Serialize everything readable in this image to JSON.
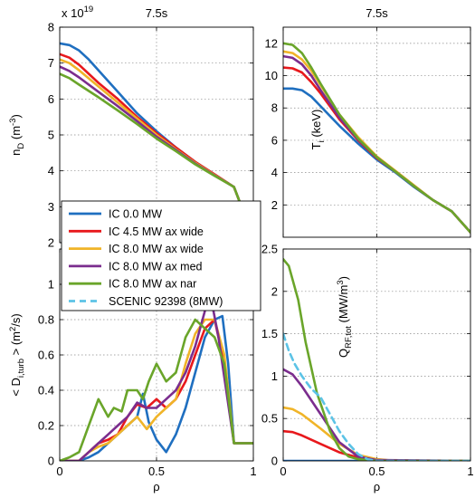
{
  "colors": {
    "IC 0.0 MW": "#1f6fc0",
    "IC 4.5 MW ax wide": "#e8181c",
    "IC 8.0 MW ax wide": "#f0b428",
    "IC 8.0 MW ax med": "#7b2d8e",
    "IC 8.0 MW ax nar": "#6aa52a",
    "SCENIC 92398 (8MW)": "#5cc3e6"
  },
  "legend": {
    "entries": [
      "IC 0.0 MW",
      "IC 4.5 MW ax wide",
      "IC 8.0 MW ax wide",
      "IC 8.0 MW ax med",
      "IC 8.0 MW ax nar",
      "SCENIC 92398 (8MW)"
    ],
    "dashed": [
      "SCENIC 92398 (8MW)"
    ]
  },
  "chart_data": [
    {
      "type": "line",
      "panel": "density",
      "title": "7.5s",
      "multiplier": "x 10",
      "multiplier_exp": "19",
      "xlabel": "",
      "ylabel_main": "n",
      "ylabel_sub": "D",
      "ylabel_unit": "(m",
      "ylabel_unit_exp": "-3",
      "ylabel_unit_close": ")",
      "xlim": [
        0,
        1
      ],
      "ylim": [
        2,
        8
      ],
      "xticks": [],
      "yticks": [
        "2",
        "3",
        "4",
        "5",
        "6",
        "7",
        "8"
      ],
      "grid": true,
      "series": [
        {
          "name": "IC 0.0 MW",
          "x": [
            0,
            0.05,
            0.1,
            0.15,
            0.2,
            0.3,
            0.4,
            0.5,
            0.6,
            0.7,
            0.8,
            0.9,
            0.95,
            1.0
          ],
          "y": [
            7.55,
            7.5,
            7.35,
            7.1,
            6.8,
            6.2,
            5.6,
            5.1,
            4.65,
            4.25,
            3.9,
            3.55,
            2.85,
            2.25
          ]
        },
        {
          "name": "IC 4.5 MW ax wide",
          "x": [
            0,
            0.05,
            0.1,
            0.2,
            0.3,
            0.4,
            0.5,
            0.6,
            0.7,
            0.8,
            0.9,
            0.95,
            1.0
          ],
          "y": [
            7.25,
            7.15,
            6.95,
            6.45,
            6.0,
            5.5,
            5.05,
            4.65,
            4.25,
            3.9,
            3.55,
            2.85,
            2.25
          ]
        },
        {
          "name": "IC 8.0 MW ax wide",
          "x": [
            0,
            0.05,
            0.1,
            0.2,
            0.3,
            0.4,
            0.5,
            0.6,
            0.7,
            0.8,
            0.9,
            0.95,
            1.0
          ],
          "y": [
            7.1,
            7.0,
            6.8,
            6.35,
            5.9,
            5.45,
            5.0,
            4.6,
            4.22,
            3.88,
            3.55,
            2.85,
            2.25
          ]
        },
        {
          "name": "IC 8.0 MW ax med",
          "x": [
            0,
            0.05,
            0.1,
            0.2,
            0.3,
            0.4,
            0.5,
            0.6,
            0.7,
            0.8,
            0.9,
            0.95,
            1.0
          ],
          "y": [
            6.9,
            6.78,
            6.6,
            6.2,
            5.8,
            5.38,
            4.95,
            4.58,
            4.2,
            3.87,
            3.55,
            2.85,
            2.25
          ]
        },
        {
          "name": "IC 8.0 MW ax nar",
          "x": [
            0,
            0.05,
            0.1,
            0.2,
            0.3,
            0.4,
            0.5,
            0.6,
            0.7,
            0.8,
            0.9,
            0.95,
            1.0
          ],
          "y": [
            6.7,
            6.58,
            6.4,
            6.05,
            5.68,
            5.3,
            4.9,
            4.55,
            4.18,
            3.86,
            3.55,
            2.85,
            2.25
          ]
        }
      ]
    },
    {
      "type": "line",
      "panel": "ion-temperature",
      "title": "7.5s",
      "xlabel": "",
      "ylabel_main": "T",
      "ylabel_sub": "i",
      "ylabel_unit": "(keV)",
      "xlim": [
        0,
        1
      ],
      "ylim": [
        0,
        13
      ],
      "xticks": [],
      "yticks": [
        "2",
        "4",
        "6",
        "8",
        "10",
        "12"
      ],
      "grid": true,
      "series": [
        {
          "name": "IC 0.0 MW",
          "x": [
            0,
            0.05,
            0.1,
            0.15,
            0.2,
            0.3,
            0.4,
            0.5,
            0.6,
            0.7,
            0.8,
            0.9,
            1.0
          ],
          "y": [
            9.2,
            9.2,
            9.1,
            8.7,
            8.1,
            6.9,
            5.8,
            4.8,
            4.0,
            3.1,
            2.3,
            1.6,
            0.3
          ]
        },
        {
          "name": "IC 4.5 MW ax wide",
          "x": [
            0,
            0.05,
            0.1,
            0.15,
            0.2,
            0.3,
            0.4,
            0.5,
            0.6,
            0.7,
            0.8,
            0.9,
            1.0
          ],
          "y": [
            10.5,
            10.45,
            10.2,
            9.6,
            8.9,
            7.3,
            6.0,
            4.9,
            4.05,
            3.15,
            2.3,
            1.6,
            0.3
          ]
        },
        {
          "name": "IC 8.0 MW ax wide",
          "x": [
            0,
            0.05,
            0.1,
            0.15,
            0.2,
            0.3,
            0.4,
            0.5,
            0.6,
            0.7,
            0.8,
            0.9,
            1.0
          ],
          "y": [
            11.5,
            11.4,
            11.0,
            10.3,
            9.4,
            7.6,
            6.2,
            5.0,
            4.1,
            3.2,
            2.3,
            1.6,
            0.3
          ]
        },
        {
          "name": "IC 8.0 MW ax med",
          "x": [
            0,
            0.05,
            0.1,
            0.15,
            0.2,
            0.3,
            0.4,
            0.5,
            0.6,
            0.7,
            0.8,
            0.9,
            1.0
          ],
          "y": [
            11.2,
            11.1,
            10.7,
            10.0,
            9.1,
            7.4,
            6.05,
            4.95,
            4.05,
            3.15,
            2.3,
            1.6,
            0.3
          ]
        },
        {
          "name": "IC 8.0 MW ax nar",
          "x": [
            0,
            0.05,
            0.1,
            0.15,
            0.2,
            0.3,
            0.4,
            0.5,
            0.6,
            0.7,
            0.8,
            0.9,
            1.0
          ],
          "y": [
            12.0,
            11.9,
            11.4,
            10.5,
            9.5,
            7.6,
            6.1,
            4.95,
            4.05,
            3.15,
            2.3,
            1.6,
            0.3
          ]
        }
      ]
    },
    {
      "type": "line",
      "panel": "diffusivity",
      "title": "",
      "xlabel": "ρ",
      "ylabel_main": "< D",
      "ylabel_sub": "i,turb",
      "ylabel_unit": "> (m",
      "ylabel_unit_exp": "2",
      "ylabel_unit_close": "/s)",
      "xlim": [
        0,
        1
      ],
      "ylim": [
        0,
        1.2
      ],
      "xticks": [
        "0",
        "0.5",
        "1"
      ],
      "yticks": [
        "0",
        "0.2",
        "0.4",
        "0.6",
        "0.8",
        "1"
      ],
      "grid": true,
      "series": [
        {
          "name": "IC 0.0 MW",
          "x": [
            0,
            0.1,
            0.15,
            0.2,
            0.25,
            0.3,
            0.35,
            0.4,
            0.43,
            0.46,
            0.5,
            0.55,
            0.6,
            0.65,
            0.7,
            0.75,
            0.8,
            0.84,
            0.87,
            0.9,
            0.95,
            1.0
          ],
          "y": [
            0,
            0,
            0.02,
            0.05,
            0.1,
            0.15,
            0.2,
            0.25,
            0.38,
            0.22,
            0.12,
            0.05,
            0.15,
            0.3,
            0.5,
            0.7,
            0.8,
            0.82,
            0.55,
            0.1,
            0.1,
            0.1
          ]
        },
        {
          "name": "IC 4.5 MW ax wide",
          "x": [
            0,
            0.1,
            0.15,
            0.2,
            0.25,
            0.3,
            0.35,
            0.4,
            0.45,
            0.5,
            0.55,
            0.6,
            0.65,
            0.7,
            0.75,
            0.8,
            0.85,
            0.9,
            0.95,
            1.0
          ],
          "y": [
            0,
            0,
            0.05,
            0.1,
            0.12,
            0.15,
            0.25,
            0.32,
            0.3,
            0.35,
            0.3,
            0.35,
            0.45,
            0.6,
            0.75,
            0.8,
            0.55,
            0.1,
            0.1,
            0.1
          ]
        },
        {
          "name": "IC 8.0 MW ax wide",
          "x": [
            0,
            0.1,
            0.15,
            0.2,
            0.25,
            0.3,
            0.35,
            0.4,
            0.45,
            0.5,
            0.55,
            0.6,
            0.65,
            0.7,
            0.75,
            0.8,
            0.85,
            0.9,
            0.95,
            1.0
          ],
          "y": [
            0,
            0,
            0.05,
            0.08,
            0.1,
            0.15,
            0.2,
            0.25,
            0.18,
            0.25,
            0.3,
            0.35,
            0.55,
            0.72,
            0.8,
            0.8,
            0.6,
            0.1,
            0.1,
            0.1
          ]
        },
        {
          "name": "IC 8.0 MW ax med",
          "x": [
            0,
            0.1,
            0.15,
            0.2,
            0.25,
            0.3,
            0.35,
            0.4,
            0.45,
            0.5,
            0.55,
            0.6,
            0.65,
            0.7,
            0.75,
            0.78,
            0.82,
            0.86,
            0.9,
            0.95,
            1.0
          ],
          "y": [
            0,
            0,
            0.05,
            0.1,
            0.15,
            0.2,
            0.25,
            0.33,
            0.3,
            0.3,
            0.35,
            0.4,
            0.5,
            0.65,
            0.85,
            0.93,
            0.7,
            0.4,
            0.1,
            0.1,
            0.1
          ]
        },
        {
          "name": "IC 8.0 MW ax nar",
          "x": [
            0,
            0.05,
            0.1,
            0.15,
            0.2,
            0.25,
            0.28,
            0.32,
            0.35,
            0.4,
            0.43,
            0.46,
            0.5,
            0.55,
            0.6,
            0.65,
            0.7,
            0.75,
            0.8,
            0.85,
            0.9,
            0.95,
            1.0
          ],
          "y": [
            0,
            0.02,
            0.05,
            0.2,
            0.35,
            0.25,
            0.3,
            0.28,
            0.4,
            0.4,
            0.35,
            0.45,
            0.55,
            0.45,
            0.5,
            0.7,
            0.8,
            0.75,
            0.7,
            0.55,
            0.1,
            0.1,
            0.1
          ]
        }
      ]
    },
    {
      "type": "line",
      "panel": "rf-power-density",
      "title": "",
      "xlabel": "ρ",
      "ylabel_main": "Q",
      "ylabel_sub": "RF,tot",
      "ylabel_unit": "(MW/m",
      "ylabel_unit_exp": "3",
      "ylabel_unit_close": ")",
      "xlim": [
        0,
        1
      ],
      "ylim": [
        0,
        2.5
      ],
      "xticks": [
        "0",
        "0.5",
        "1"
      ],
      "yticks": [
        "0",
        "0.5",
        "1",
        "1.5",
        "2",
        "2.5"
      ],
      "grid": true,
      "series": [
        {
          "name": "IC 0.0 MW",
          "x": [
            0,
            1.0
          ],
          "y": [
            0,
            0
          ]
        },
        {
          "name": "IC 4.5 MW ax wide",
          "x": [
            0,
            0.05,
            0.1,
            0.2,
            0.3,
            0.4,
            0.5,
            0.6,
            1.0
          ],
          "y": [
            0.35,
            0.34,
            0.3,
            0.2,
            0.1,
            0.04,
            0.01,
            0,
            0
          ]
        },
        {
          "name": "IC 8.0 MW ax wide",
          "x": [
            0,
            0.05,
            0.1,
            0.2,
            0.3,
            0.4,
            0.5,
            0.6,
            1.0
          ],
          "y": [
            0.63,
            0.61,
            0.55,
            0.38,
            0.2,
            0.07,
            0.02,
            0,
            0
          ]
        },
        {
          "name": "IC 8.0 MW ax med",
          "x": [
            0,
            0.05,
            0.1,
            0.2,
            0.3,
            0.4,
            0.5,
            1.0
          ],
          "y": [
            1.08,
            1.02,
            0.88,
            0.55,
            0.22,
            0.05,
            0.01,
            0
          ]
        },
        {
          "name": "IC 8.0 MW ax nar",
          "x": [
            0,
            0.03,
            0.08,
            0.12,
            0.18,
            0.25,
            0.3,
            0.35,
            0.4,
            0.5,
            1.0
          ],
          "y": [
            2.38,
            2.3,
            1.9,
            1.4,
            0.8,
            0.35,
            0.15,
            0.05,
            0.02,
            0,
            0
          ]
        },
        {
          "name": "SCENIC 92398 (8MW)",
          "dashed": true,
          "x": [
            0,
            0.03,
            0.06,
            0.1,
            0.15,
            0.2,
            0.25,
            0.3,
            0.35,
            0.4,
            0.45,
            0.5,
            0.55,
            1.0
          ],
          "y": [
            1.5,
            1.3,
            1.15,
            1.0,
            0.85,
            0.75,
            0.55,
            0.35,
            0.2,
            0.08,
            0.02,
            0,
            0,
            0
          ]
        }
      ]
    }
  ]
}
